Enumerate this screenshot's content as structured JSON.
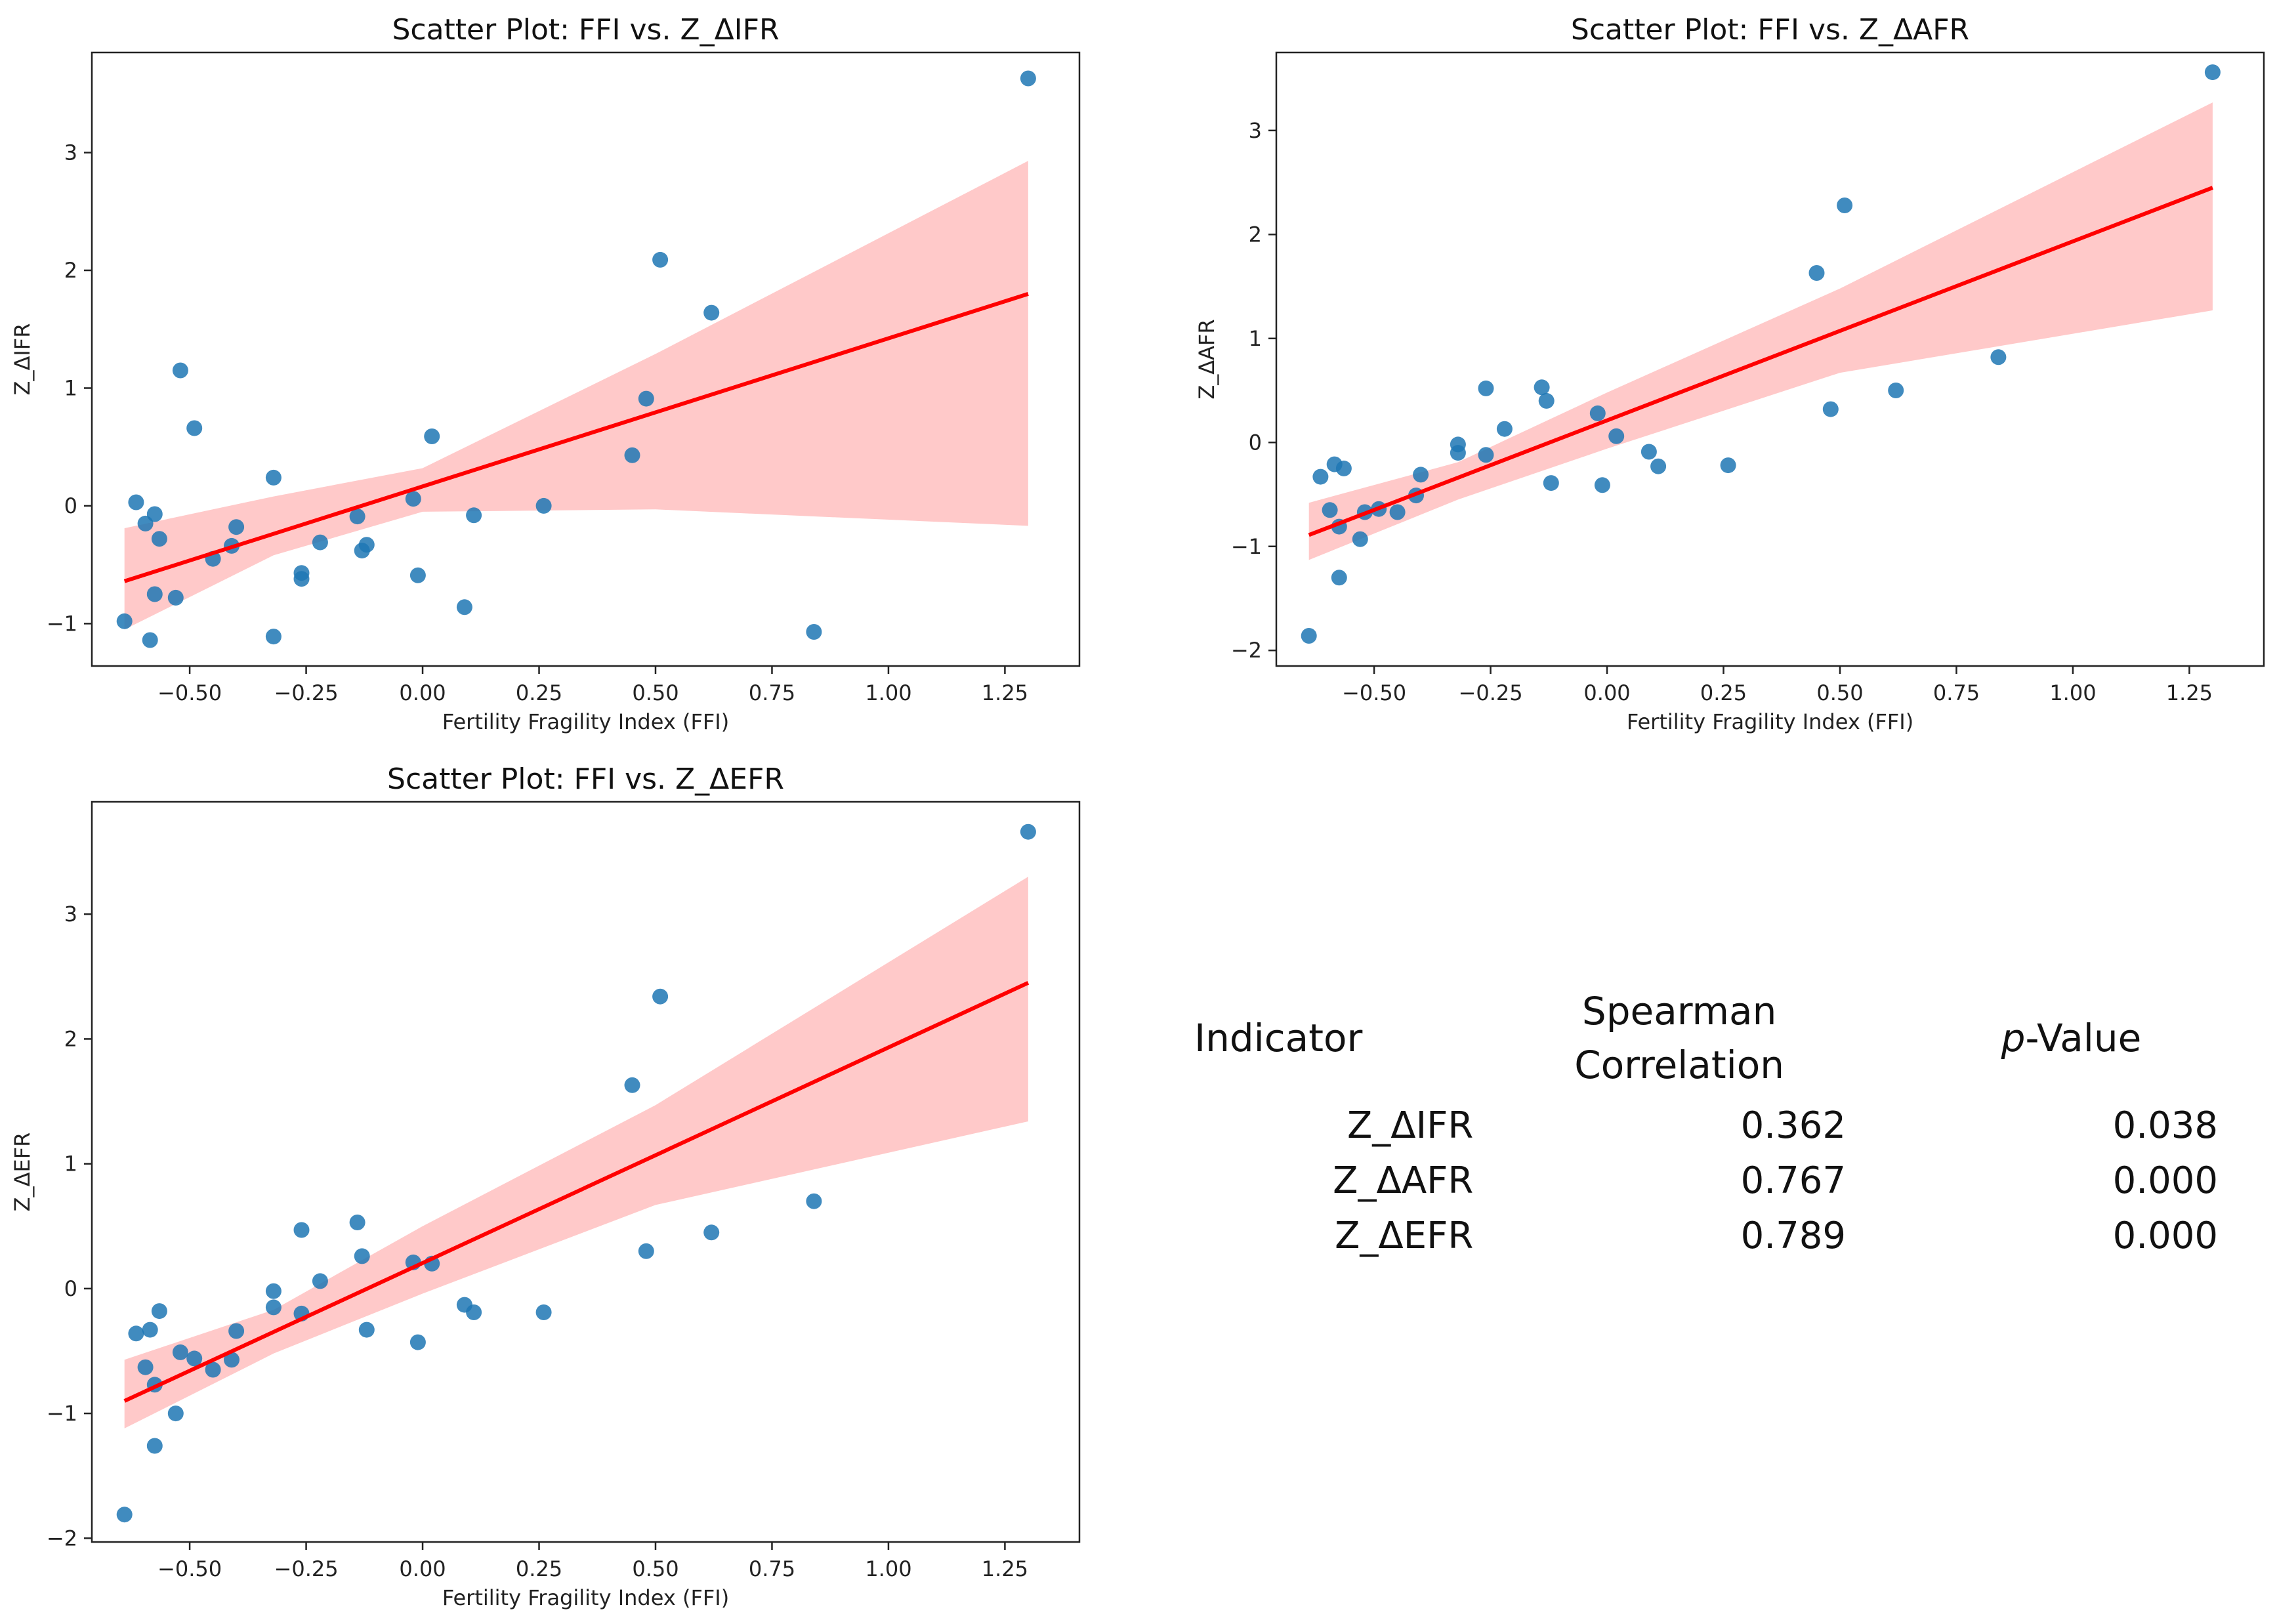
{
  "chart_data": [
    {
      "type": "scatter",
      "title": "Scatter Plot: FFI vs. Z_ΔIFR",
      "xlabel": "Fertility Fragility Index (FFI)",
      "ylabel": "Z_ΔIFR",
      "xlim": [
        -0.71,
        1.41
      ],
      "ylim": [
        -1.36,
        3.85
      ],
      "xticks": [
        -0.5,
        -0.25,
        0.0,
        0.25,
        0.5,
        0.75,
        1.0,
        1.25
      ],
      "xtick_labels": [
        "−0.50",
        "−0.25",
        "0.00",
        "0.25",
        "0.50",
        "0.75",
        "1.00",
        "1.25"
      ],
      "yticks": [
        -1,
        0,
        1,
        2,
        3
      ],
      "ytick_labels": [
        "−1",
        "0",
        "1",
        "2",
        "3"
      ],
      "points": [
        [
          -0.64,
          -0.98
        ],
        [
          -0.615,
          0.03
        ],
        [
          -0.595,
          -0.15
        ],
        [
          -0.585,
          -1.14
        ],
        [
          -0.575,
          -0.75
        ],
        [
          -0.575,
          -0.07
        ],
        [
          -0.565,
          -0.28
        ],
        [
          -0.53,
          -0.78
        ],
        [
          -0.52,
          1.15
        ],
        [
          -0.49,
          0.66
        ],
        [
          -0.45,
          -0.45
        ],
        [
          -0.41,
          -0.34
        ],
        [
          -0.4,
          -0.18
        ],
        [
          -0.32,
          0.24
        ],
        [
          -0.32,
          -1.11
        ],
        [
          -0.26,
          -0.57
        ],
        [
          -0.26,
          -0.62
        ],
        [
          -0.22,
          -0.31
        ],
        [
          -0.14,
          -0.09
        ],
        [
          -0.13,
          -0.38
        ],
        [
          -0.12,
          -0.33
        ],
        [
          -0.02,
          0.06
        ],
        [
          -0.01,
          -0.59
        ],
        [
          0.02,
          0.59
        ],
        [
          0.09,
          -0.86
        ],
        [
          0.11,
          -0.08
        ],
        [
          0.26,
          0.0
        ],
        [
          0.45,
          0.43
        ],
        [
          0.48,
          0.91
        ],
        [
          0.51,
          2.09
        ],
        [
          0.62,
          1.64
        ],
        [
          0.84,
          -1.07
        ],
        [
          1.3,
          3.63
        ]
      ],
      "fit": {
        "x0": -0.64,
        "y0": -0.64,
        "x1": 1.3,
        "y1": 1.8
      },
      "ci": {
        "x": [
          -0.64,
          -0.32,
          0.0,
          0.5,
          1.3
        ],
        "lower": [
          -1.05,
          -0.42,
          -0.05,
          -0.03,
          -0.17
        ],
        "upper": [
          -0.19,
          0.08,
          0.32,
          1.29,
          2.93
        ]
      },
      "point_color": "#1f77b4",
      "line_color": "#ff0000",
      "band_color": "#ffc9c9"
    },
    {
      "type": "scatter",
      "title": "Scatter Plot: FFI vs. Z_ΔAFR",
      "xlabel": "Fertility Fragility Index (FFI)",
      "ylabel": "Z_ΔAFR",
      "xlim": [
        -0.71,
        1.41
      ],
      "ylim": [
        -2.15,
        3.75
      ],
      "xticks": [
        -0.5,
        -0.25,
        0.0,
        0.25,
        0.5,
        0.75,
        1.0,
        1.25
      ],
      "xtick_labels": [
        "−0.50",
        "−0.25",
        "0.00",
        "0.25",
        "0.50",
        "0.75",
        "1.00",
        "1.25"
      ],
      "yticks": [
        -2,
        -1,
        0,
        1,
        2,
        3
      ],
      "ytick_labels": [
        "−2",
        "−1",
        "0",
        "1",
        "2",
        "3"
      ],
      "points": [
        [
          -0.64,
          -1.86
        ],
        [
          -0.615,
          -0.33
        ],
        [
          -0.595,
          -0.65
        ],
        [
          -0.585,
          -0.21
        ],
        [
          -0.575,
          -1.3
        ],
        [
          -0.575,
          -0.81
        ],
        [
          -0.565,
          -0.25
        ],
        [
          -0.53,
          -0.93
        ],
        [
          -0.52,
          -0.67
        ],
        [
          -0.49,
          -0.64
        ],
        [
          -0.45,
          -0.67
        ],
        [
          -0.41,
          -0.51
        ],
        [
          -0.4,
          -0.31
        ],
        [
          -0.32,
          -0.02
        ],
        [
          -0.32,
          -0.1
        ],
        [
          -0.26,
          0.52
        ],
        [
          -0.26,
          -0.12
        ],
        [
          -0.22,
          0.13
        ],
        [
          -0.14,
          0.53
        ],
        [
          -0.13,
          0.4
        ],
        [
          -0.12,
          -0.39
        ],
        [
          -0.02,
          0.28
        ],
        [
          -0.01,
          -0.41
        ],
        [
          0.02,
          0.06
        ],
        [
          0.09,
          -0.09
        ],
        [
          0.11,
          -0.23
        ],
        [
          0.26,
          -0.22
        ],
        [
          0.45,
          1.63
        ],
        [
          0.48,
          0.32
        ],
        [
          0.51,
          2.28
        ],
        [
          0.62,
          0.5
        ],
        [
          0.84,
          0.82
        ],
        [
          1.3,
          3.56
        ]
      ],
      "fit": {
        "x0": -0.64,
        "y0": -0.89,
        "x1": 1.3,
        "y1": 2.45
      },
      "ci": {
        "x": [
          -0.64,
          -0.32,
          0.0,
          0.5,
          1.3
        ],
        "lower": [
          -1.13,
          -0.55,
          -0.06,
          0.67,
          1.27
        ],
        "upper": [
          -0.58,
          -0.19,
          0.48,
          1.48,
          3.27
        ]
      },
      "point_color": "#1f77b4",
      "line_color": "#ff0000",
      "band_color": "#ffc9c9"
    },
    {
      "type": "scatter",
      "title": "Scatter Plot: FFI vs. Z_ΔEFR",
      "xlabel": "Fertility Fragility Index (FFI)",
      "ylabel": "Z_ΔEFR",
      "xlim": [
        -0.71,
        1.41
      ],
      "ylim": [
        -2.03,
        3.9
      ],
      "xticks": [
        -0.5,
        -0.25,
        0.0,
        0.25,
        0.5,
        0.75,
        1.0,
        1.25
      ],
      "xtick_labels": [
        "−0.50",
        "−0.25",
        "0.00",
        "0.25",
        "0.50",
        "0.75",
        "1.00",
        "1.25"
      ],
      "yticks": [
        -2,
        -1,
        0,
        1,
        2,
        3
      ],
      "ytick_labels": [
        "−2",
        "−1",
        "0",
        "1",
        "2",
        "3"
      ],
      "points": [
        [
          -0.64,
          -1.81
        ],
        [
          -0.615,
          -0.36
        ],
        [
          -0.595,
          -0.63
        ],
        [
          -0.585,
          -0.33
        ],
        [
          -0.575,
          -1.26
        ],
        [
          -0.575,
          -0.77
        ],
        [
          -0.565,
          -0.18
        ],
        [
          -0.53,
          -1.0
        ],
        [
          -0.52,
          -0.51
        ],
        [
          -0.49,
          -0.56
        ],
        [
          -0.45,
          -0.65
        ],
        [
          -0.41,
          -0.57
        ],
        [
          -0.4,
          -0.34
        ],
        [
          -0.32,
          -0.02
        ],
        [
          -0.32,
          -0.15
        ],
        [
          -0.26,
          0.47
        ],
        [
          -0.26,
          -0.2
        ],
        [
          -0.22,
          0.06
        ],
        [
          -0.14,
          0.53
        ],
        [
          -0.13,
          0.26
        ],
        [
          -0.12,
          -0.33
        ],
        [
          -0.02,
          0.21
        ],
        [
          -0.01,
          -0.43
        ],
        [
          0.02,
          0.2
        ],
        [
          0.09,
          -0.13
        ],
        [
          0.11,
          -0.19
        ],
        [
          0.26,
          -0.19
        ],
        [
          0.45,
          1.63
        ],
        [
          0.48,
          0.3
        ],
        [
          0.51,
          2.34
        ],
        [
          0.62,
          0.45
        ],
        [
          0.84,
          0.7
        ],
        [
          1.3,
          3.66
        ]
      ],
      "fit": {
        "x0": -0.64,
        "y0": -0.9,
        "x1": 1.3,
        "y1": 2.45
      },
      "ci": {
        "x": [
          -0.64,
          -0.32,
          0.0,
          0.5,
          1.3
        ],
        "lower": [
          -1.12,
          -0.52,
          -0.04,
          0.67,
          1.34
        ],
        "upper": [
          -0.57,
          -0.17,
          0.5,
          1.47,
          3.3
        ]
      },
      "point_color": "#1f77b4",
      "line_color": "#ff0000",
      "band_color": "#ffc9c9"
    }
  ],
  "stats_table": {
    "headers": {
      "indicator": "Indicator",
      "spearman_line1": "Spearman",
      "spearman_line2": "Correlation",
      "pvalue_italic": "p",
      "pvalue_rest": "-Value"
    },
    "rows": [
      {
        "indicator": "Z_ΔIFR",
        "spearman": "0.362",
        "pvalue": "0.038"
      },
      {
        "indicator": "Z_ΔAFR",
        "spearman": "0.767",
        "pvalue": "0.000"
      },
      {
        "indicator": "Z_ΔEFR",
        "spearman": "0.789",
        "pvalue": "0.000"
      }
    ]
  }
}
